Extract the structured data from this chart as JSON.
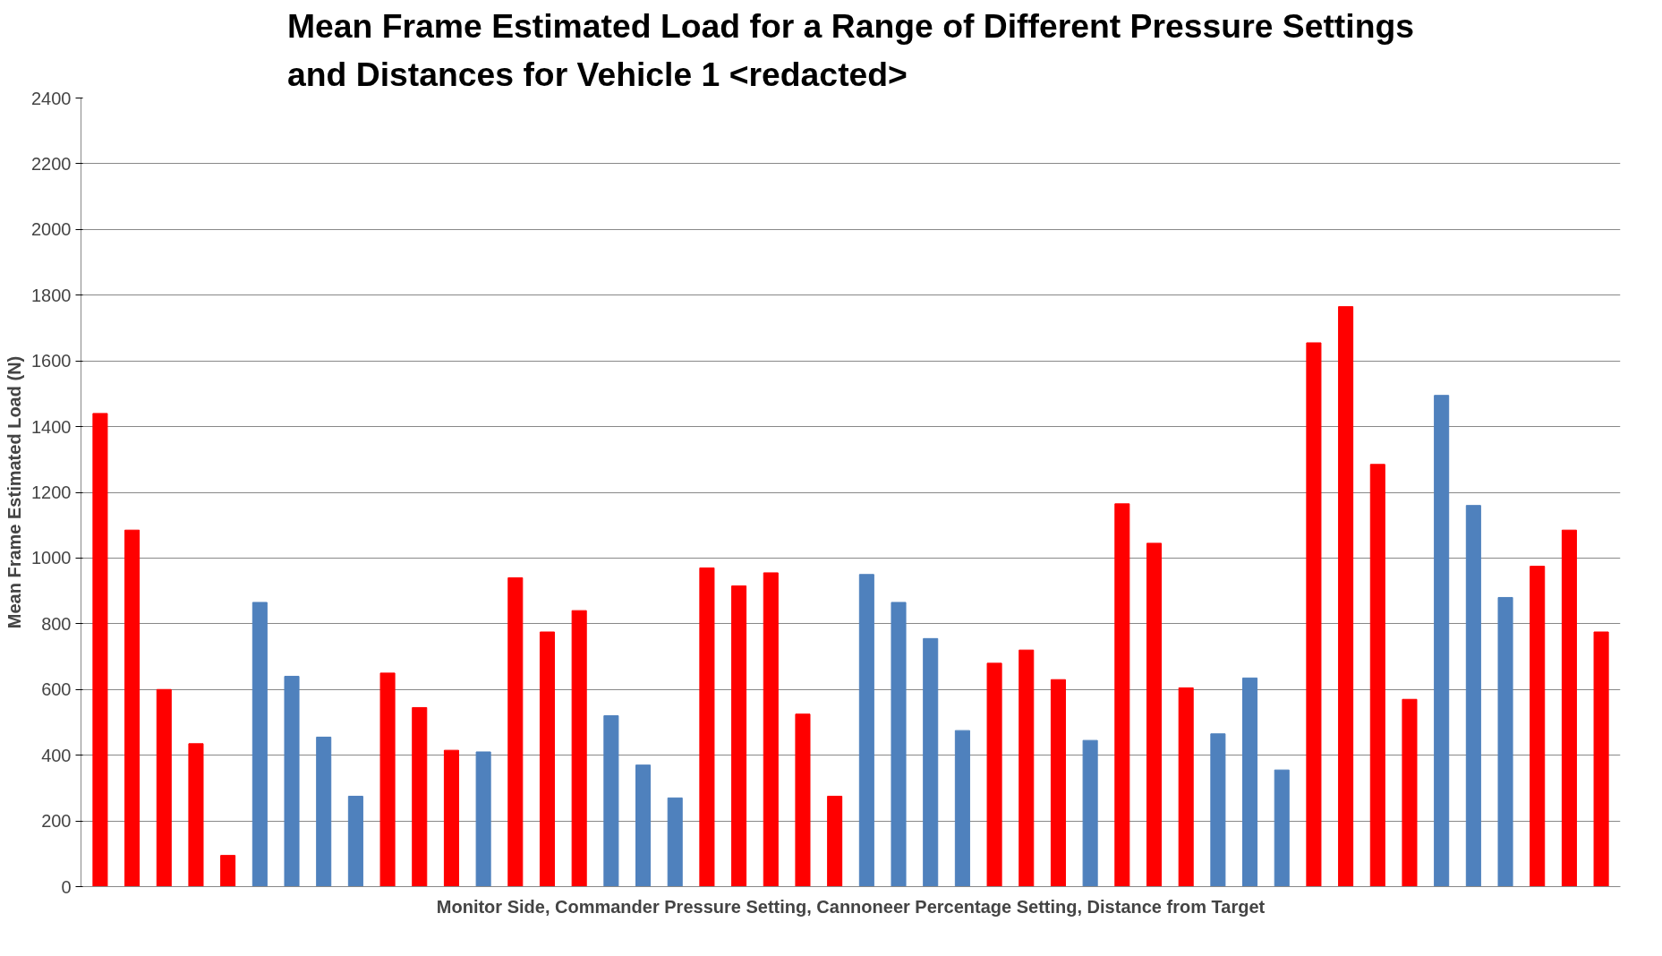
{
  "chart_data": {
    "type": "bar",
    "title": "Mean Frame Estimated Load for a Range of Different Pressure Settings\nand Distances for Vehicle 1 <redacted>",
    "xlabel": "Monitor Side, Commander Pressure Setting, Cannoneer Percentage Setting, Distance from Target",
    "ylabel": "Mean Frame Estimated Load (N)",
    "categories": [
      null,
      null,
      null,
      null,
      null,
      null,
      null,
      null,
      null,
      null,
      null,
      null,
      null,
      null,
      null,
      null,
      null,
      null,
      null,
      null,
      null,
      null,
      null,
      null,
      null,
      null,
      null,
      null,
      null,
      null,
      null,
      null,
      null,
      null,
      null,
      null,
      null,
      null,
      null,
      null,
      null,
      null,
      null,
      null,
      null,
      null,
      null,
      null
    ],
    "values": [
      1440,
      1085,
      600,
      435,
      95,
      865,
      640,
      455,
      275,
      650,
      545,
      415,
      410,
      940,
      775,
      840,
      520,
      370,
      270,
      970,
      915,
      955,
      525,
      275,
      950,
      865,
      755,
      475,
      680,
      720,
      630,
      445,
      1165,
      1045,
      605,
      465,
      635,
      355,
      1655,
      1765,
      1285,
      570,
      1495,
      1160,
      880,
      975,
      1085,
      775
    ],
    "colors": [
      "#ff0000",
      "#ff0000",
      "#ff0000",
      "#ff0000",
      "#ff0000",
      "#4f81bd",
      "#4f81bd",
      "#4f81bd",
      "#4f81bd",
      "#ff0000",
      "#ff0000",
      "#ff0000",
      "#4f81bd",
      "#ff0000",
      "#ff0000",
      "#ff0000",
      "#4f81bd",
      "#4f81bd",
      "#4f81bd",
      "#ff0000",
      "#ff0000",
      "#ff0000",
      "#ff0000",
      "#ff0000",
      "#4f81bd",
      "#4f81bd",
      "#4f81bd",
      "#4f81bd",
      "#ff0000",
      "#ff0000",
      "#ff0000",
      "#4f81bd",
      "#ff0000",
      "#ff0000",
      "#ff0000",
      "#4f81bd",
      "#4f81bd",
      "#4f81bd",
      "#ff0000",
      "#ff0000",
      "#ff0000",
      "#ff0000",
      "#4f81bd",
      "#4f81bd",
      "#4f81bd",
      "#ff0000",
      "#ff0000",
      "#ff0000"
    ],
    "ylim": [
      0,
      2400
    ],
    "yticks": [
      0,
      200,
      400,
      600,
      800,
      1000,
      1200,
      1400,
      1600,
      1800,
      2000,
      2200,
      2400
    ],
    "grid": "y"
  }
}
